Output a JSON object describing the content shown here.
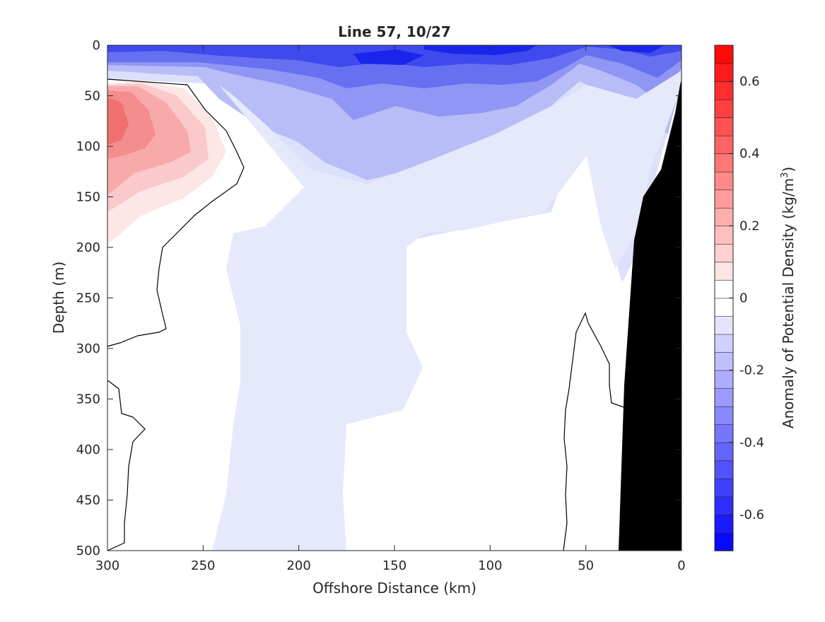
{
  "chart_data": {
    "type": "heatmap",
    "title": "Line 57, 10/27",
    "xlabel": "Offshore Distance (km)",
    "ylabel": "Depth (m)",
    "xlim": [
      300,
      0
    ],
    "ylim": [
      0,
      500
    ],
    "xticks": [
      "300",
      "250",
      "200",
      "150",
      "100",
      "50",
      "0"
    ],
    "yticks": [
      "0",
      "50",
      "100",
      "150",
      "200",
      "250",
      "300",
      "350",
      "400",
      "450",
      "500"
    ],
    "colorbar": {
      "label": "Anomaly of Potential Density (kg/m",
      "label_superscript": "3",
      "label_close": ")",
      "range": [
        -0.7,
        0.7
      ],
      "step": 0.05,
      "ticks": [
        "0.6",
        "0.4",
        "0.2",
        "0",
        "-0.2",
        "-0.4",
        "-0.6"
      ],
      "tick_values": [
        0.6,
        0.4,
        0.2,
        0,
        -0.2,
        -0.4,
        -0.6
      ]
    },
    "colors": {
      "negative": "#0000ff",
      "positive": "#ff0000",
      "zero": "#ffffff",
      "bathymetry": "#000000"
    },
    "annotations": [
      "zero contour",
      "shelf bathymetry"
    ],
    "field_samples": [
      {
        "x": 295,
        "y": 80,
        "value": 0.35
      },
      {
        "x": 270,
        "y": 95,
        "value": 0.22
      },
      {
        "x": 280,
        "y": 160,
        "value": 0.08
      },
      {
        "x": 100,
        "y": 5,
        "value": -0.6
      },
      {
        "x": 160,
        "y": 50,
        "value": -0.35
      },
      {
        "x": 200,
        "y": 300,
        "value": -0.05
      },
      {
        "x": 100,
        "y": 300,
        "value": 0.0
      },
      {
        "x": 15,
        "y": 60,
        "value": -0.15
      }
    ]
  }
}
